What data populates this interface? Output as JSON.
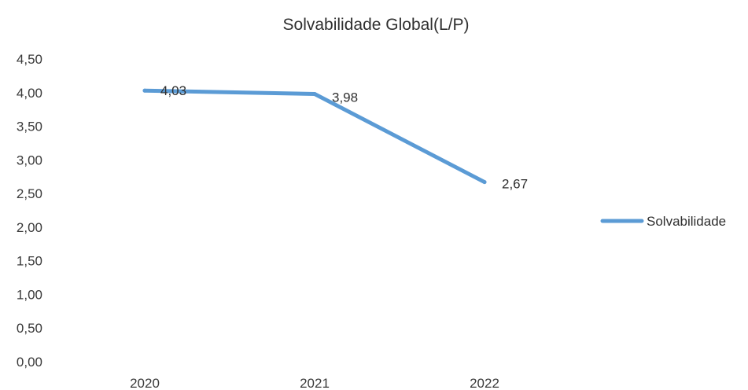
{
  "chart_data": {
    "type": "line",
    "title": "Solvabilidade Global(L/P)",
    "xlabel": "",
    "ylabel": "",
    "categories": [
      "2020",
      "2021",
      "2022"
    ],
    "series": [
      {
        "name": "Solvabilidade",
        "values": [
          4.03,
          3.98,
          2.67
        ],
        "labels": [
          "4,03",
          "3,98",
          "2,67"
        ]
      }
    ],
    "ylim": [
      0,
      4.5
    ],
    "yticks": [
      0,
      0.5,
      1,
      1.5,
      2,
      2.5,
      3,
      3.5,
      4,
      4.5
    ],
    "ytick_labels": [
      "0,00",
      "0,50",
      "1,00",
      "1,50",
      "2,00",
      "2,50",
      "3,00",
      "3,50",
      "4,00",
      "4,50"
    ],
    "grid": false,
    "legend_position": "right",
    "colors": {
      "series": "#5b9bd5",
      "text": "#2f2f2f"
    }
  }
}
